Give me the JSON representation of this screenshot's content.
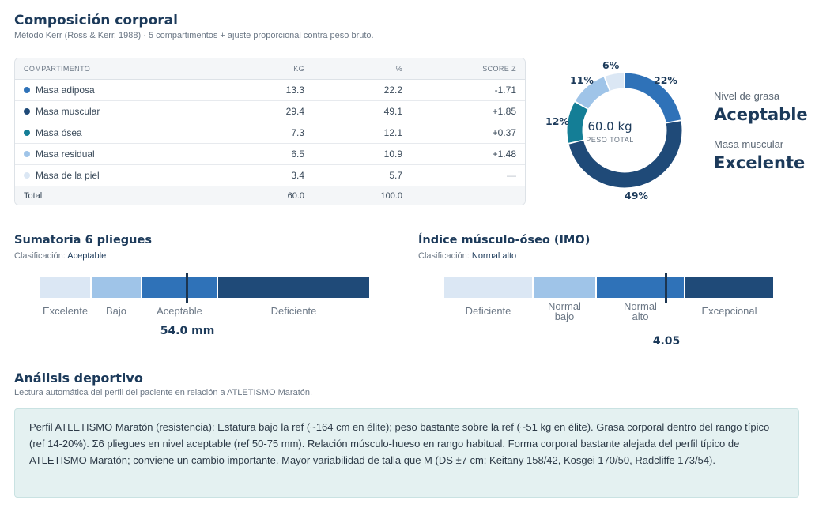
{
  "composition": {
    "title": "Composición corporal",
    "subtitle": "Método Kerr (Ross & Kerr, 1988) · 5 compartimentos + ajuste proporcional contra peso bruto.",
    "columns": [
      "COMPARTIMENTO",
      "KG",
      "%",
      "SCORE Z"
    ],
    "rows": [
      {
        "name": "Masa adiposa",
        "kg": "13.3",
        "pct": "22.2",
        "z": "-1.71",
        "color": "#2f72b8"
      },
      {
        "name": "Masa muscular",
        "kg": "29.4",
        "pct": "49.1",
        "z": "+1.85",
        "color": "#1f4a78"
      },
      {
        "name": "Masa ósea",
        "kg": "7.3",
        "pct": "12.1",
        "z": "+0.37",
        "color": "#147e96"
      },
      {
        "name": "Masa residual",
        "kg": "6.5",
        "pct": "10.9",
        "z": "+1.48",
        "color": "#9fc4e8"
      },
      {
        "name": "Masa de la piel",
        "kg": "3.4",
        "pct": "5.7",
        "z": "—",
        "color": "#dbe7f4"
      }
    ],
    "total": {
      "name": "Total",
      "kg": "60.0",
      "pct": "100.0"
    },
    "donut": {
      "center_value": "60.0 kg",
      "center_caption": "PESO TOTAL",
      "labels": [
        "22%",
        "49%",
        "12%",
        "11%",
        "6%"
      ]
    },
    "fat_level": {
      "caption": "Nivel de grasa",
      "value": "Aceptable"
    },
    "muscle_mass": {
      "caption": "Masa muscular",
      "value": "Excelente"
    }
  },
  "skinfolds": {
    "title": "Sumatoria 6 pliegues",
    "class_prefix": "Clasificación:",
    "class_value": "Aceptable",
    "segments": [
      "Excelente",
      "Bajo",
      "Aceptable",
      "Deficiente"
    ],
    "reading": "54.0 mm"
  },
  "imo": {
    "title": "Índice músculo-óseo (IMO)",
    "class_prefix": "Clasificación:",
    "class_value": "Normal alto",
    "segments": [
      "Deficiente",
      "Normal bajo",
      "Normal alto",
      "Excepcional"
    ],
    "reading": "4.05"
  },
  "sports": {
    "title": "Análisis deportivo",
    "subtitle": "Lectura automática del perfil del paciente en relación a ATLETISMO Maratón.",
    "text": "Perfil ATLETISMO Maratón (resistencia): Estatura bajo la ref (~164 cm en élite); peso bastante sobre la ref (~51 kg en élite). Grasa corporal dentro del rango típico (ref 14-20%). Σ6 pliegues en nivel aceptable (ref 50-75 mm). Relación músculo-hueso en rango habitual. Forma corporal bastante alejada del perfil típico de ATLETISMO Maratón; conviene un cambio importante. Mayor variabilidad de talla que M (DS ±7 cm: Keitany 158/42, Kosgei 170/50, Radcliffe 173/54)."
  }
}
